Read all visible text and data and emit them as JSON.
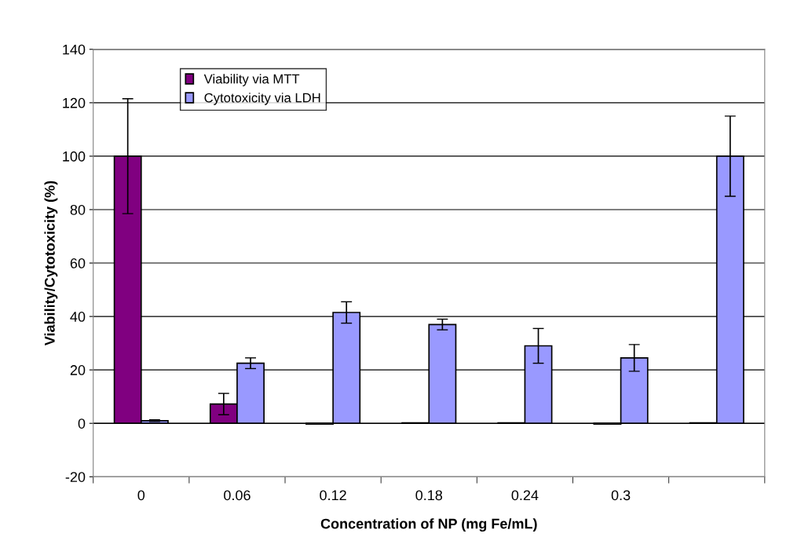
{
  "chart_data": {
    "type": "bar",
    "xlabel": "Concentration of NP (mg Fe/mL)",
    "ylabel": "Viability/Cytotoxicity (%)",
    "categories": [
      "0",
      "0.06",
      "0.12",
      "0.18",
      "0.24",
      "0.3",
      null
    ],
    "series": [
      {
        "name": "Viability via MTT",
        "color": "#800080",
        "values": [
          100,
          7.2,
          -0.3,
          0.2,
          0.2,
          -0.3,
          0.2
        ],
        "errors": [
          21.5,
          4,
          null,
          null,
          null,
          null,
          null
        ]
      },
      {
        "name": "Cytotoxicity via LDH",
        "color": "#9999ff",
        "values": [
          1,
          22.5,
          41.5,
          37,
          29,
          24.5,
          100
        ],
        "errors": [
          0.3,
          2,
          4,
          2,
          6.5,
          5,
          15
        ]
      }
    ],
    "ylim": [
      -20,
      140
    ],
    "yticks": [
      -20,
      0,
      20,
      40,
      60,
      80,
      100,
      120,
      140
    ],
    "grid": "y",
    "legend": "top left"
  }
}
